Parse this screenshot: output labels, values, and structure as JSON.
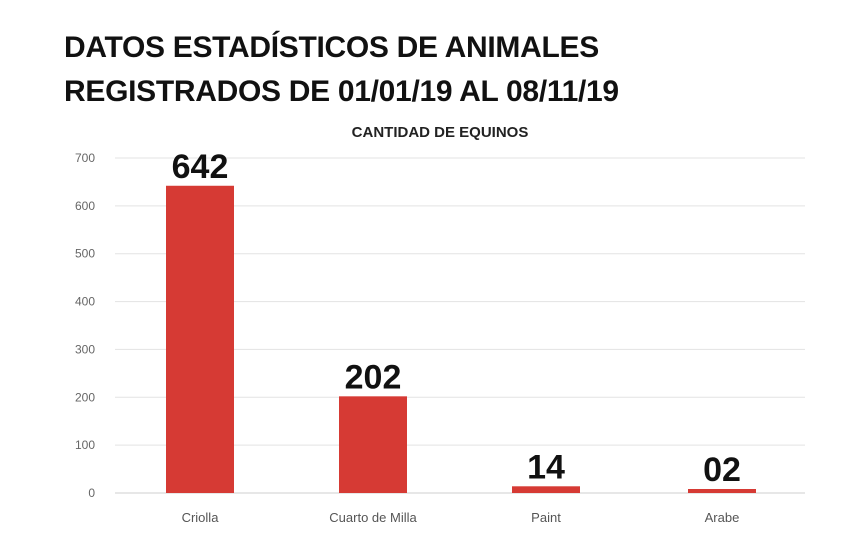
{
  "chart_data": {
    "type": "bar",
    "title_lines": [
      "DATOS ESTADÍSTICOS DE ANIMALES",
      "REGISTRADOS DE 01/01/19 AL 08/11/19"
    ],
    "subtitle": "CANTIDAD DE EQUINOS",
    "categories": [
      "Criolla",
      "Cuarto de Milla",
      "Paint",
      "Arabe"
    ],
    "values": [
      642,
      202,
      14,
      2
    ],
    "data_labels": [
      "642",
      "202",
      "14",
      "02"
    ],
    "ylim": [
      0,
      700
    ],
    "yticks": [
      0,
      100,
      200,
      300,
      400,
      500,
      600,
      700
    ],
    "grid": true,
    "legend": "none",
    "bar_color": "#d63a34"
  }
}
